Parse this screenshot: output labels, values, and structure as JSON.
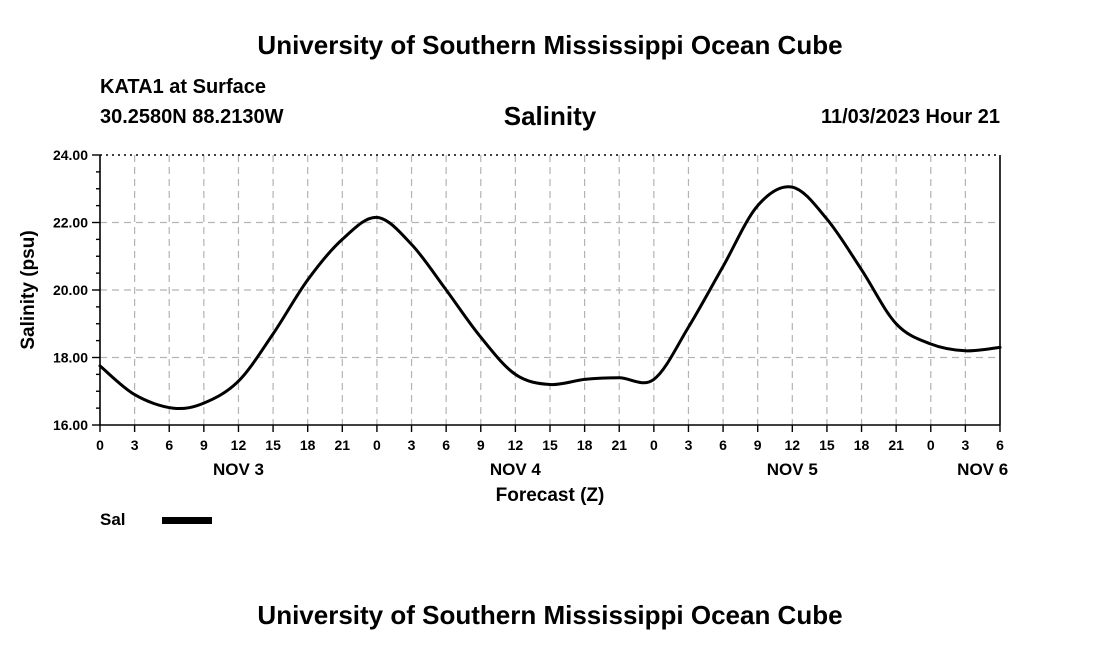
{
  "header": {
    "title": "University of Southern Mississippi Ocean Cube",
    "station": "KATA1 at Surface",
    "coordinates": "30.2580N  88.2130W",
    "valid_time": "11/03/2023 Hour 21"
  },
  "footer": {
    "title": "University of Southern Mississippi Ocean Cube"
  },
  "legend": {
    "label": "Sal",
    "color": "#000000"
  },
  "chart_data": {
    "type": "line",
    "title": "Salinity",
    "xlabel": "Forecast (Z)",
    "ylabel": "Salinity (psu)",
    "xlim": [
      0,
      78
    ],
    "ylim": [
      16,
      24
    ],
    "y_ticks": [
      "16.00",
      "18.00",
      "20.00",
      "22.00",
      "24.00"
    ],
    "x_tick_labels": [
      "0",
      "3",
      "6",
      "9",
      "12",
      "15",
      "18",
      "21",
      "0",
      "3",
      "6",
      "9",
      "12",
      "15",
      "18",
      "21",
      "0",
      "3",
      "6",
      "9",
      "12",
      "15",
      "18",
      "21",
      "0",
      "3",
      "6"
    ],
    "day_labels": [
      {
        "label": "NOV 3",
        "x": 12
      },
      {
        "label": "NOV 4",
        "x": 36
      },
      {
        "label": "NOV 5",
        "x": 60
      },
      {
        "label": "NOV 6",
        "x": 76.5
      }
    ],
    "grid": true,
    "legend_position": "bottom-left",
    "series": [
      {
        "name": "Sal",
        "color": "#000000",
        "x": [
          0,
          3,
          6.3,
          9,
          12,
          15,
          18,
          21,
          24,
          27,
          30,
          33,
          36,
          39,
          42,
          45,
          48,
          51,
          54,
          57,
          60,
          63,
          66,
          69,
          72,
          75,
          78
        ],
        "y": [
          17.75,
          16.9,
          16.5,
          16.65,
          17.3,
          18.7,
          20.3,
          21.5,
          22.15,
          21.35,
          20.0,
          18.6,
          17.5,
          17.2,
          17.35,
          17.4,
          17.35,
          18.9,
          20.7,
          22.5,
          23.05,
          22.1,
          20.6,
          19.0,
          18.4,
          18.2,
          18.3
        ]
      }
    ]
  }
}
